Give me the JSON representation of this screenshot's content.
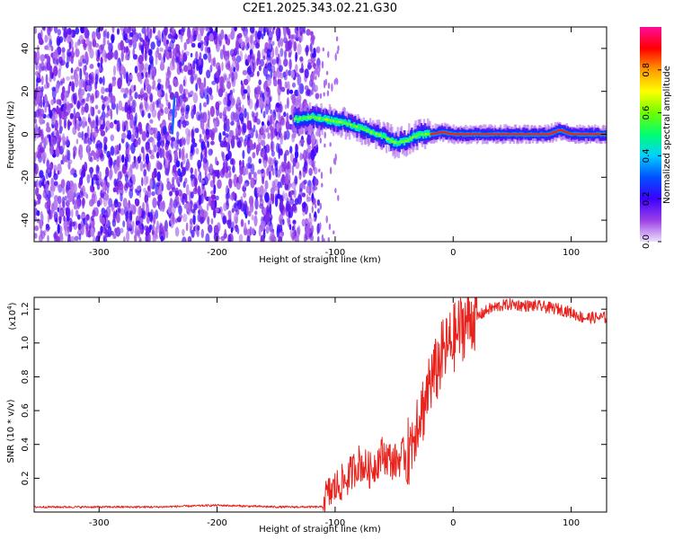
{
  "title": "C2E1.2025.343.02.21.G30",
  "chart_data": [
    {
      "type": "heatmap",
      "name": "spectrogram",
      "xlabel": "Height of straight line (km)",
      "ylabel": "Frequency (Hz)",
      "xlim": [
        -355,
        130
      ],
      "ylim": [
        -50,
        50
      ],
      "xticks": [
        -300,
        -200,
        -100,
        0,
        100
      ],
      "yticks": [
        -40,
        -20,
        0,
        20,
        40
      ],
      "colorbar": {
        "label": "Normalized spectral amplitude",
        "range": [
          0,
          1
        ],
        "ticks": [
          0.0,
          0.2,
          0.4,
          0.6,
          0.8
        ],
        "tick_labels": [
          "0.0",
          "0.2",
          "0.4",
          "0.6",
          "0.8"
        ],
        "colormap": [
          "#e8d8f8",
          "#8a2be2",
          "#3b00ff",
          "#0040ff",
          "#00ccff",
          "#00ff80",
          "#80ff00",
          "#ffff00",
          "#ff9900",
          "#ff0000",
          "#ff00aa"
        ]
      },
      "ridge": {
        "x": [
          -135,
          -120,
          -110,
          -100,
          -90,
          -80,
          -70,
          -60,
          -50,
          -40,
          -30,
          -20,
          -10,
          0,
          20,
          40,
          60,
          80,
          90,
          100,
          130
        ],
        "y": [
          7,
          8,
          7,
          6,
          5,
          3,
          1,
          -1,
          -4,
          -3,
          0,
          0,
          1,
          0,
          0,
          0,
          0,
          0,
          2,
          0,
          0
        ]
      },
      "noise_region": {
        "x": [
          -355,
          -120
        ],
        "y": [
          -50,
          50
        ]
      },
      "streak": {
        "x": [
          -238,
          -236
        ],
        "y": [
          0,
          18
        ]
      }
    },
    {
      "type": "line",
      "name": "snr",
      "xlabel": "Height of straight line (km)",
      "ylabel": "SNR (10 * v/v)",
      "scale_label": "(x10",
      "scale_exp": "4",
      "xlim": [
        -355,
        130
      ],
      "ylim": [
        0,
        1.27
      ],
      "xticks": [
        -300,
        -200,
        -100,
        0,
        100
      ],
      "yticks": [
        0.2,
        0.4,
        0.6,
        0.8,
        1.0,
        1.2
      ],
      "ytick_labels": [
        "0.2",
        "0.4",
        "0.6",
        "0.8",
        "1.0",
        "1.2"
      ],
      "color": "#e8221c",
      "series": {
        "x": [
          -355,
          -300,
          -250,
          -200,
          -150,
          -110,
          -100,
          -90,
          -80,
          -70,
          -60,
          -50,
          -40,
          -35,
          -30,
          -25,
          -20,
          -15,
          -10,
          -5,
          0,
          10,
          20,
          30,
          40,
          50,
          60,
          70,
          80,
          90,
          100,
          110,
          120,
          130
        ],
        "y": [
          0.03,
          0.03,
          0.03,
          0.04,
          0.03,
          0.03,
          0.1,
          0.15,
          0.25,
          0.2,
          0.3,
          0.25,
          0.3,
          0.4,
          0.55,
          0.6,
          0.75,
          0.8,
          0.9,
          0.95,
          1.0,
          1.1,
          1.15,
          1.2,
          1.22,
          1.23,
          1.22,
          1.22,
          1.21,
          1.2,
          1.18,
          1.15,
          1.15,
          1.15
        ]
      }
    }
  ]
}
